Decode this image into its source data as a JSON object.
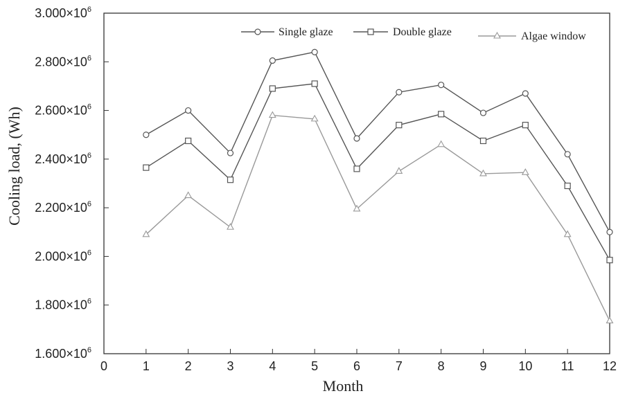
{
  "chart_data": {
    "type": "line",
    "xlabel": "Month",
    "ylabel": "Cooling load, (Wh)",
    "xlim": [
      0,
      12
    ],
    "ylim": [
      1600000,
      3000000
    ],
    "x_ticks": [
      "0",
      "1",
      "2",
      "3",
      "4",
      "5",
      "6",
      "7",
      "8",
      "9",
      "10",
      "11",
      "12"
    ],
    "y_ticks": [
      {
        "base": "1.600×10",
        "exp": "6"
      },
      {
        "base": "1.800×10",
        "exp": "6"
      },
      {
        "base": "2.000×10",
        "exp": "6"
      },
      {
        "base": "2.200×10",
        "exp": "6"
      },
      {
        "base": "2.400×10",
        "exp": "6"
      },
      {
        "base": "2.600×10",
        "exp": "6"
      },
      {
        "base": "2.800×10",
        "exp": "6"
      },
      {
        "base": "3.000×10",
        "exp": "6"
      }
    ],
    "y_tick_values": [
      1600000,
      1800000,
      2000000,
      2200000,
      2400000,
      2600000,
      2800000,
      3000000
    ],
    "x": [
      1,
      2,
      3,
      4,
      5,
      6,
      7,
      8,
      9,
      10,
      11,
      12
    ],
    "grid": false,
    "legend_position": "top-right",
    "series": [
      {
        "name": "Single glaze",
        "marker": "circle",
        "color": "#555555",
        "values": [
          2500000,
          2600000,
          2425000,
          2805000,
          2840000,
          2485000,
          2675000,
          2705000,
          2590000,
          2670000,
          2420000,
          2100000
        ]
      },
      {
        "name": "Double glaze",
        "marker": "square",
        "color": "#555555",
        "values": [
          2365000,
          2475000,
          2315000,
          2690000,
          2710000,
          2360000,
          2540000,
          2585000,
          2475000,
          2540000,
          2290000,
          1985000
        ]
      },
      {
        "name": "Algae window",
        "marker": "triangle",
        "color": "#999999",
        "values": [
          2090000,
          2250000,
          2120000,
          2580000,
          2565000,
          2195000,
          2350000,
          2460000,
          2340000,
          2345000,
          2090000,
          1735000
        ]
      }
    ]
  }
}
